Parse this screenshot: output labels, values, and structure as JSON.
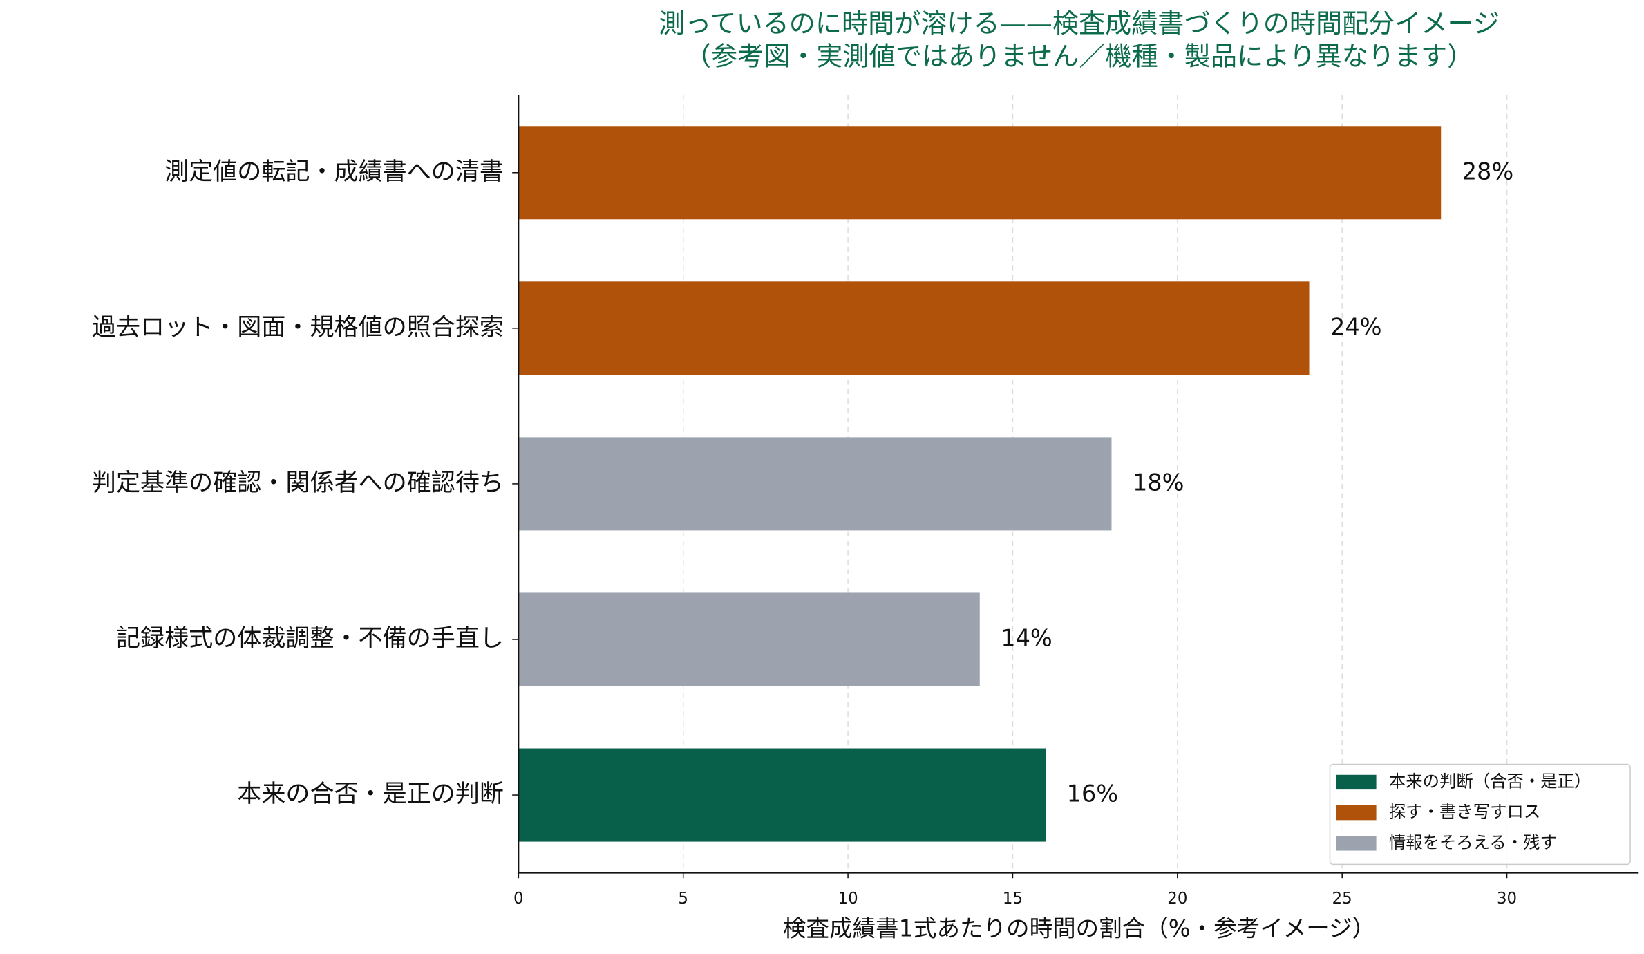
{
  "chart_data": {
    "type": "barh",
    "title": "測っているのに時間が溶ける——検査成績書づくりの時間配分イメージ",
    "subtitle": "（参考図・実測値ではありません／機種・製品により異なります）",
    "x_label": "検査成績書1式あたりの時間の割合（%・参考イメージ）",
    "categories": [
      "測定値の転記・成績書への清書",
      "過去ロット・図面・規格値の照合探索",
      "判定基準の確認・関係者への確認待ち",
      "記録様式の体裁調整・不備の手直し",
      "本来の合否・是正の判断"
    ],
    "values": [
      28,
      24,
      18,
      14,
      16
    ],
    "value_labels": [
      "28%",
      "24%",
      "18%",
      "14%",
      "16%"
    ],
    "colors": [
      "#b1520b",
      "#b1520b",
      "#9ca3ae",
      "#9ca3ae",
      "#08604a"
    ],
    "legend": [
      {
        "name": "本来の判断（合否・是正）",
        "color": "#08604a"
      },
      {
        "name": "探す・書き写すロス",
        "color": "#b1520b"
      },
      {
        "name": "情報をそろえる・残す",
        "color": "#9ca3ae"
      }
    ],
    "legend_position": "lower right",
    "xlim": [
      0,
      34
    ],
    "xticks": [
      0,
      5,
      10,
      15,
      20,
      25,
      30
    ],
    "grid": true
  }
}
